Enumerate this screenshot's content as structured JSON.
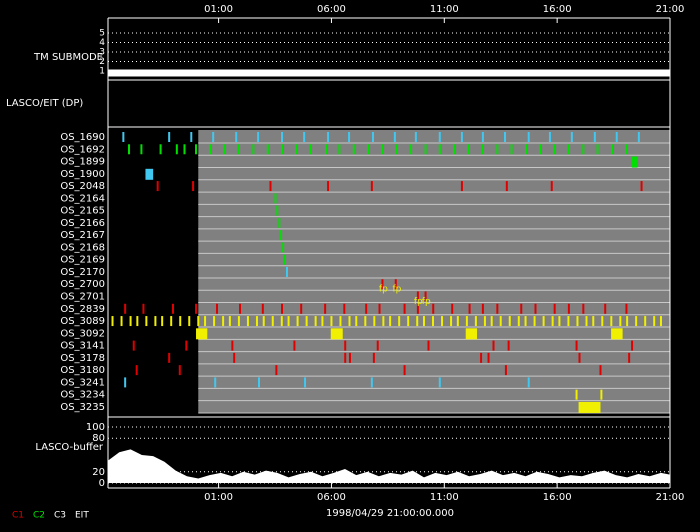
{
  "chart_data": {
    "type": "timeline",
    "xlabel": "1998/04/29 21:00:00.000",
    "xlim": [
      -3.9,
      21
    ],
    "xticks": [
      {
        "value": 1,
        "label": "01:00"
      },
      {
        "value": 6,
        "label": "06:00"
      },
      {
        "value": 11,
        "label": "11:00"
      },
      {
        "value": 16,
        "label": "16:00"
      },
      {
        "value": 21,
        "label": "21:00"
      }
    ],
    "shaded_range": [
      0.1,
      21
    ],
    "submode": {
      "label": "TM SUBMODE",
      "ylim": [
        1,
        5
      ],
      "yticks": [
        1,
        2,
        3,
        4,
        5
      ],
      "x": [
        -3.9,
        21
      ],
      "values": [
        1,
        1
      ]
    },
    "section_label": "LASCO/EIT (DP)",
    "rows": [
      {
        "name": "OS_1690",
        "color": "#40c8f0",
        "events": [
          -3.22,
          -1.19,
          -0.21,
          0.76,
          1.78,
          2.75,
          3.81,
          4.79,
          5.85,
          6.78,
          7.84,
          8.81,
          9.74,
          10.8,
          11.78,
          12.71,
          13.69,
          14.74,
          15.68,
          16.65,
          17.67,
          18.64,
          19.62
        ]
      },
      {
        "name": "OS_1692",
        "color": "#00e000",
        "events": [
          -2.97,
          -2.42,
          -1.57,
          -0.85,
          -0.51,
          0,
          0.63,
          1.27,
          1.9,
          2.54,
          3.18,
          3.81,
          4.45,
          5.08,
          5.76,
          6.35,
          6.99,
          7.63,
          8.26,
          8.9,
          9.53,
          10.17,
          10.8,
          11.44,
          12.07,
          12.71,
          13.35,
          13.98,
          14.62,
          15.25,
          15.89,
          16.52,
          17.16,
          17.79,
          18.43,
          19.07
        ]
      },
      {
        "name": "OS_1899",
        "color": "#00e000",
        "blocks": [
          [
            19.31,
            19.56
          ]
        ]
      },
      {
        "name": "OS_1900",
        "color": "#40c8f0",
        "blocks": [
          [
            -2.24,
            -1.9
          ]
        ]
      },
      {
        "name": "OS_2048",
        "color": "#e00000",
        "events": [
          -1.7,
          -0.13,
          3.3,
          5.85,
          7.79,
          11.78,
          13.77,
          15.76,
          19.74
        ]
      },
      {
        "name": "OS_2164",
        "color": "#00e000",
        "events": [
          3.52
        ]
      },
      {
        "name": "OS_2165",
        "color": "#00e000",
        "events": [
          3.6
        ]
      },
      {
        "name": "OS_2166",
        "color": "#00e000",
        "events": [
          3.69
        ]
      },
      {
        "name": "OS_2167",
        "color": "#00e000",
        "events": [
          3.77
        ]
      },
      {
        "name": "OS_2168",
        "color": "#00e000",
        "events": [
          3.86
        ]
      },
      {
        "name": "OS_2169",
        "color": "#00e000",
        "events": [
          3.94
        ]
      },
      {
        "name": "OS_2170",
        "color": "#40c8f0",
        "events": [
          4.03
        ]
      },
      {
        "name": "OS_2700",
        "color": "#e00000",
        "events": [
          8.26,
          8.85
        ]
      },
      {
        "name": "OS_2701",
        "color": "#e00000",
        "events": [
          9.83,
          10.17
        ]
      },
      {
        "name": "OS_2839",
        "color": "#e00000",
        "events": [
          -3.14,
          -2.33,
          -1.02,
          0,
          0.93,
          1.95,
          2.96,
          3.81,
          4.66,
          5.72,
          6.57,
          7.54,
          8.13,
          9.24,
          9.83,
          10.51,
          11.35,
          12.12,
          12.71,
          13.35,
          14.41,
          15.04,
          15.89,
          16.52,
          17.16,
          18.13,
          19.07
        ]
      },
      {
        "name": "OS_3089",
        "color": "#f0f000",
        "events": [
          -3.7,
          -3.3,
          -2.9,
          -2.6,
          -2.2,
          -1.8,
          -1.5,
          -1.1,
          -0.7,
          -0.3,
          0.1,
          0.4,
          0.8,
          1.2,
          1.5,
          1.9,
          2.3,
          2.7,
          3.0,
          3.4,
          3.8,
          4.1,
          4.5,
          4.9,
          5.3,
          5.6,
          6.0,
          6.4,
          6.8,
          7.1,
          7.5,
          7.9,
          8.3,
          8.6,
          9.0,
          9.4,
          9.8,
          10.1,
          10.5,
          10.9,
          11.3,
          11.6,
          12.0,
          12.4,
          12.8,
          13.1,
          13.5,
          13.9,
          14.3,
          14.6,
          15.0,
          15.4,
          15.8,
          16.1,
          16.5,
          16.9,
          17.3,
          17.6,
          18.0,
          18.4,
          18.8,
          19.1,
          19.5,
          19.9,
          20.3,
          20.6
        ]
      },
      {
        "name": "OS_3092",
        "color": "#f0f000",
        "blocks": [
          [
            0,
            0.5
          ],
          [
            5.97,
            6.5
          ],
          [
            11.95,
            12.45
          ],
          [
            18.39,
            18.9
          ]
        ]
      },
      {
        "name": "OS_3141",
        "color": "#e00000",
        "events": [
          -2.76,
          -0.43,
          1.61,
          4.36,
          6.61,
          8.05,
          10.3,
          13.18,
          13.85,
          16.86,
          19.32
        ]
      },
      {
        "name": "OS_3178",
        "color": "#e00000",
        "events": [
          -1.19,
          1.69,
          6.61,
          6.82,
          7.88,
          12.63,
          12.96,
          16.99,
          19.19
        ]
      },
      {
        "name": "OS_3180",
        "color": "#e00000",
        "events": [
          -2.63,
          -0.72,
          3.56,
          9.24,
          13.73,
          17.92
        ]
      },
      {
        "name": "OS_3241",
        "color": "#40c8f0",
        "events": [
          -3.14,
          0.85,
          2.79,
          4.83,
          7.79,
          10.8,
          14.74
        ]
      },
      {
        "name": "OS_3234",
        "color": "#f0f000",
        "events": [
          16.86,
          17.96
        ]
      },
      {
        "name": "OS_3235",
        "color": "#f0f000",
        "blocks": [
          [
            16.95,
            17.92
          ]
        ]
      }
    ],
    "annotations": [
      {
        "text": "fp",
        "x": 8.3,
        "row": 12,
        "color": "#f0f000"
      },
      {
        "text": "fp",
        "x": 8.9,
        "row": 12,
        "color": "#f0f000"
      },
      {
        "text": "fp",
        "x": 9.85,
        "row": 13,
        "color": "#f0f000"
      },
      {
        "text": "fp",
        "x": 10.2,
        "row": 13,
        "color": "#f0f000"
      }
    ],
    "buffer": {
      "label": "LASCO-buffer",
      "ylim": [
        0,
        100
      ],
      "yticks": [
        0,
        20,
        80,
        100
      ],
      "x": [
        -3.9,
        -3.4,
        -2.9,
        -2.4,
        -1.9,
        -1.4,
        -0.9,
        -0.4,
        0.1,
        0.6,
        1.1,
        1.6,
        2.1,
        2.6,
        3.1,
        3.6,
        4.1,
        4.6,
        5.1,
        5.6,
        6.1,
        6.6,
        7.1,
        7.6,
        8.1,
        8.6,
        9.1,
        9.6,
        10.1,
        10.6,
        11.1,
        11.6,
        12.1,
        12.6,
        13.1,
        13.6,
        14.1,
        14.6,
        15.1,
        15.6,
        16.1,
        16.6,
        17.1,
        17.6,
        18.1,
        18.6,
        19.1,
        19.6,
        20.1,
        20.6,
        21
      ],
      "values": [
        40,
        55,
        60,
        50,
        48,
        38,
        22,
        12,
        8,
        14,
        18,
        12,
        20,
        15,
        22,
        18,
        10,
        16,
        20,
        12,
        18,
        25,
        14,
        20,
        12,
        18,
        15,
        22,
        10,
        18,
        14,
        20,
        12,
        16,
        22,
        14,
        18,
        12,
        20,
        16,
        10,
        14,
        12,
        18,
        22,
        14,
        10,
        16,
        12,
        18,
        15
      ]
    },
    "legend": [
      {
        "name": "C1",
        "color": "#e00000"
      },
      {
        "name": "C2",
        "color": "#00e000"
      },
      {
        "name": "C3",
        "color": "#ffffff"
      },
      {
        "name": "EIT",
        "color": "#ffffff"
      }
    ]
  }
}
